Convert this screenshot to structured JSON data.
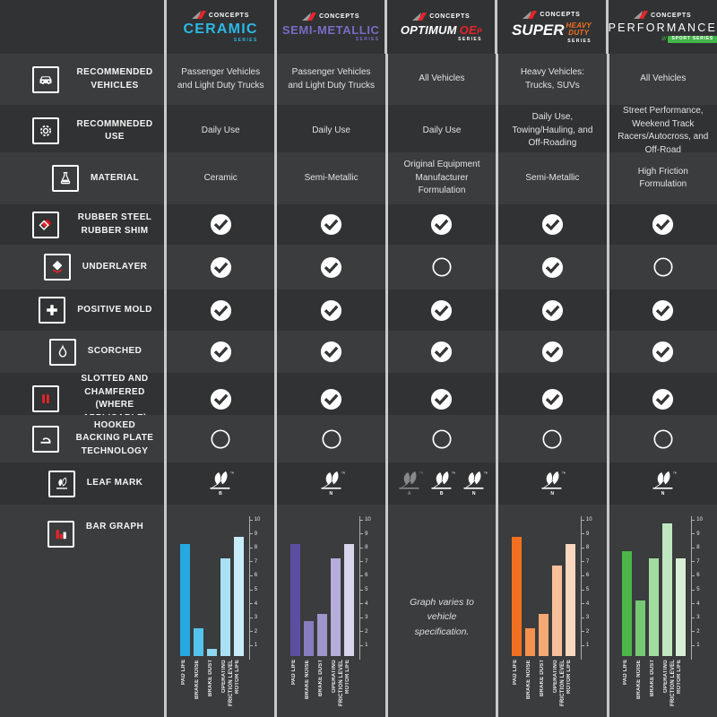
{
  "brand": "CONCEPTS",
  "tm": "TM",
  "row_labels": {
    "vehicles": "RECOMMENDED VEHICLES",
    "use": "RECOMMNEDED USE",
    "material": "MATERIAL",
    "shim": "RUBBER STEEL RUBBER SHIM",
    "underlayer": "UNDERLAYER",
    "positive_mold": "POSITIVE MOLD",
    "scorched": "SCORCHED",
    "slotted": "SLOTTED AND CHAMFERED (WHERE APPLICABLE)",
    "hooked": "HOOKED BACKING PLATE TECHNOLOGY",
    "leaf_mark": "LEAF MARK",
    "bar_graph": "BAR GRAPH"
  },
  "columns": [
    {
      "header": {
        "name": "CERAMIC",
        "tag": "SERIES",
        "accent": "#2bb9e6"
      },
      "vehicles": "Passenger Vehicles and Light Duty Trucks",
      "use": "Daily Use",
      "material": "Ceramic",
      "features": {
        "shim": true,
        "underlayer": true,
        "positive_mold": true,
        "scorched": true,
        "slotted": true,
        "hooked": false
      },
      "leaf_marks": [
        {
          "letter": "B",
          "filled": true
        }
      ]
    },
    {
      "header": {
        "name": "SEMI-METALLIC",
        "tag": "SERIES",
        "accent": "#7a6bc7"
      },
      "vehicles": "Passenger Vehicles and Light Duty Trucks",
      "use": "Daily Use",
      "material": "Semi-Metallic",
      "features": {
        "shim": true,
        "underlayer": true,
        "positive_mold": true,
        "scorched": true,
        "slotted": true,
        "hooked": false
      },
      "leaf_marks": [
        {
          "letter": "N",
          "filled": true
        }
      ]
    },
    {
      "header": {
        "name": "OPTIMUM",
        "name2": "OE",
        "name3": "P",
        "tag": "SERIES",
        "accent": "#e8232a"
      },
      "vehicles": "All Vehicles",
      "use": "Daily Use",
      "material": "Original Equipment Manufacturer Formulation",
      "features": {
        "shim": true,
        "underlayer": false,
        "positive_mold": true,
        "scorched": true,
        "slotted": true,
        "hooked": false
      },
      "leaf_marks": [
        {
          "letter": "A",
          "filled": false
        },
        {
          "letter": "B",
          "filled": true
        },
        {
          "letter": "N",
          "filled": true
        }
      ]
    },
    {
      "header": {
        "name": "SUPER",
        "name2": "HEAVY",
        "name3": "DUTY",
        "tag": "SERIES",
        "accent": "#f4711f"
      },
      "vehicles": "Heavy Vehicles: Trucks, SUVs",
      "use": "Daily Use, Towing/Hauling, and Off-Roading",
      "material": "Semi-Metallic",
      "features": {
        "shim": true,
        "underlayer": true,
        "positive_mold": true,
        "scorched": true,
        "slotted": true,
        "hooked": false
      },
      "leaf_marks": [
        {
          "letter": "N",
          "filled": true
        }
      ]
    },
    {
      "header": {
        "name": "PERFORMANCE",
        "slashes": "///",
        "badge": "SPORT SERIES",
        "accent": "#43b649"
      },
      "vehicles": "All Vehicles",
      "use": "Street Performance, Weekend Track Racers/Autocross, and Off-Road",
      "material": "High Friction Formulation",
      "features": {
        "shim": true,
        "underlayer": false,
        "positive_mold": true,
        "scorched": true,
        "slotted": true,
        "hooked": false
      },
      "leaf_marks": [
        {
          "letter": "N",
          "filled": true
        }
      ]
    }
  ],
  "chart_data": [
    {
      "type": "bar",
      "column": "CERAMIC SERIES",
      "categories": [
        "PAD LIFE",
        "BRAKE NOISE",
        "BRAKE DUST",
        "OPERATING FRICTION LEVEL",
        "ROTOR LIFE"
      ],
      "values": [
        8,
        2,
        0.5,
        7,
        8.5
      ],
      "palette": [
        "#25a9e0",
        "#53c3ec",
        "#8ed6f2",
        "#a9e0f6",
        "#c8ecfa"
      ],
      "ylim": [
        0,
        10
      ],
      "yticks": [
        1,
        2,
        3,
        4,
        5,
        6,
        7,
        8,
        9,
        10
      ],
      "axis_side": "right",
      "grid": false
    },
    {
      "type": "bar",
      "column": "SEMI-METALLIC SERIES",
      "categories": [
        "PAD LIFE",
        "BRAKE NOISE",
        "BRAKE DUST",
        "OPERATING FRICTION LEVEL",
        "ROTOR LIFE"
      ],
      "values": [
        8,
        2.5,
        3,
        7,
        8
      ],
      "palette": [
        "#5c4ea0",
        "#887cbe",
        "#a094cc",
        "#b6addb",
        "#d8d4ec"
      ],
      "ylim": [
        0,
        10
      ],
      "yticks": [
        1,
        2,
        3,
        4,
        5,
        6,
        7,
        8,
        9,
        10
      ],
      "axis_side": "right",
      "grid": false
    },
    {
      "type": "none",
      "column": "OPTIMUM OEP SERIES",
      "note": "Graph varies to vehicle specification."
    },
    {
      "type": "bar",
      "column": "SUPER HEAVY DUTY SERIES",
      "categories": [
        "PAD LIFE",
        "BRAKE NOISE",
        "BRAKE DUST",
        "OPERATING FRICTION LEVEL",
        "ROTOR LIFE"
      ],
      "values": [
        8.5,
        2,
        3,
        6.5,
        8
      ],
      "palette": [
        "#f1701f",
        "#f5914f",
        "#f6a873",
        "#f8c09a",
        "#fad7bf"
      ],
      "ylim": [
        0,
        10
      ],
      "yticks": [
        1,
        2,
        3,
        4,
        5,
        6,
        7,
        8,
        9,
        10
      ],
      "axis_side": "right",
      "grid": false
    },
    {
      "type": "bar",
      "column": "PERFORMANCE SPORT SERIES",
      "categories": [
        "PAD LIFE",
        "BRAKE NOISE",
        "BRAKE DUST",
        "OPERATING FRICTION LEVEL",
        "ROTOR LIFE"
      ],
      "values": [
        7.5,
        4,
        7,
        9.5,
        7
      ],
      "palette": [
        "#4cb748",
        "#75c973",
        "#a2dba0",
        "#c0e7bf",
        "#d8efd6"
      ],
      "ylim": [
        0,
        10
      ],
      "yticks": [
        1,
        2,
        3,
        4,
        5,
        6,
        7,
        8,
        9,
        10
      ],
      "axis_side": "right",
      "grid": false
    }
  ]
}
